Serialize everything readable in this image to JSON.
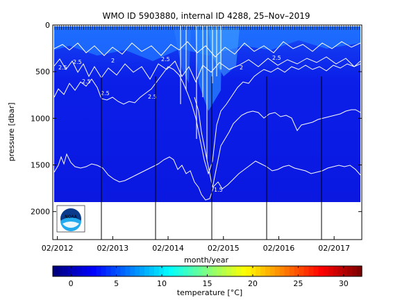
{
  "chart_data": {
    "type": "heatmap",
    "title": "WMO ID 5903880, internal ID 4288, 25–Nov–2019",
    "xlabel": "month/year",
    "ylabel": "pressure [dbar]",
    "x_ticks": [
      "02/2012",
      "02/2013",
      "02/2014",
      "02/2015",
      "02/2016",
      "02/2017"
    ],
    "x_range": [
      "2012-01",
      "2017-08"
    ],
    "y_ticks": [
      0,
      500,
      1000,
      1500,
      2000
    ],
    "ylim": [
      2300,
      0
    ],
    "y_inverted": true,
    "data_max_pressure": 1900,
    "isotherm_labels": [
      "2.5",
      "2",
      "1.5"
    ],
    "colorbar": {
      "label": "temperature [°C]",
      "range": [
        -2,
        32
      ],
      "ticks": [
        0,
        5,
        10,
        15,
        20,
        25,
        30
      ],
      "colormap": "jet"
    },
    "logo": "NOAA"
  }
}
